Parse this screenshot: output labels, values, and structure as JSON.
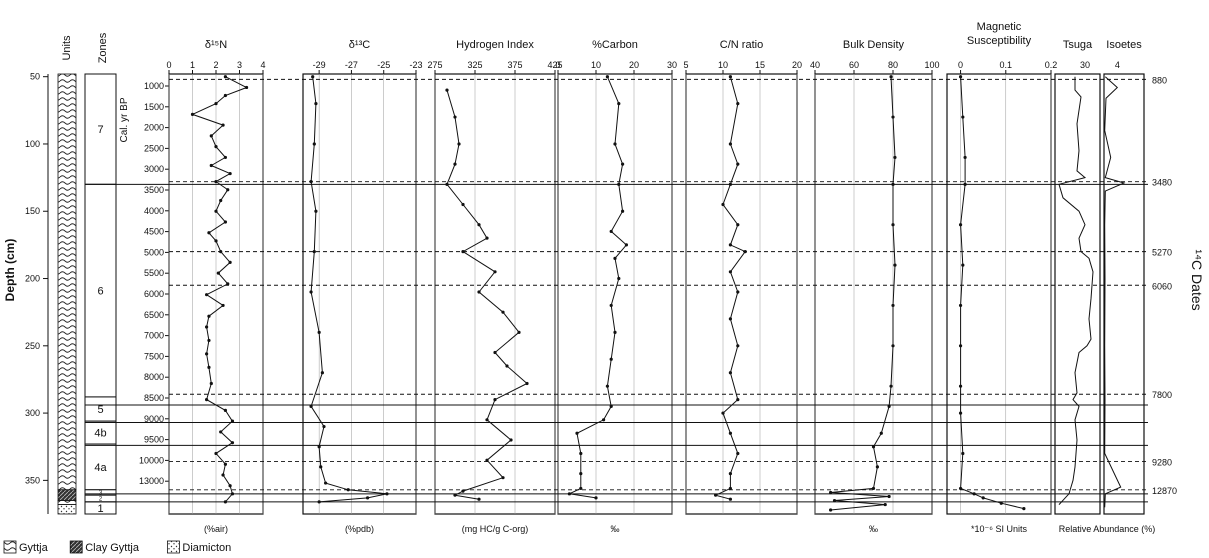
{
  "chart_data": {
    "type": "line",
    "depth_axis": {
      "label": "Depth (cm)",
      "ticks": [
        50,
        100,
        150,
        200,
        250,
        300,
        350
      ],
      "range": [
        48,
        375
      ]
    },
    "units": {
      "title": "Units",
      "intervals": [
        {
          "lith": "gyttja",
          "top": 48,
          "bottom": 357
        },
        {
          "lith": "clay",
          "top": 357,
          "bottom": 365
        },
        {
          "lith": "gyttja",
          "top": 365,
          "bottom": 368
        },
        {
          "lith": "diamicton",
          "top": 368,
          "bottom": 375
        }
      ]
    },
    "zones": {
      "title": "Zones",
      "items": [
        {
          "label": "7",
          "top": 48,
          "bottom": 130
        },
        {
          "label": "6",
          "top": 130,
          "bottom": 288
        },
        {
          "label": "5",
          "top": 288,
          "bottom": 306
        },
        {
          "label": "4b",
          "top": 306,
          "bottom": 323
        },
        {
          "label": "4a",
          "top": 323,
          "bottom": 357
        },
        {
          "label": "3",
          "top": 357,
          "bottom": 361
        },
        {
          "label": "2",
          "top": 361,
          "bottom": 366
        },
        {
          "label": "1",
          "top": 366,
          "bottom": 375
        }
      ]
    },
    "age_axis": {
      "label": "Cal. yr BP",
      "ticks": [
        "1000",
        "1500",
        "2000",
        "2500",
        "3000",
        "3500",
        "4000",
        "4500",
        "5000",
        "5500",
        "6000",
        "6500",
        "7000",
        "7500",
        "8000",
        "8500",
        "9000",
        "9500",
        "10000",
        "13000"
      ]
    },
    "solid_lines": [
      130,
      294,
      307,
      324,
      360,
      366
    ],
    "dashed_lines": [
      52,
      128,
      180,
      205,
      286,
      336,
      357
    ],
    "dates_title": "¹⁴C Dates",
    "dates": [
      {
        "label": "880",
        "depth": 52
      },
      {
        "label": "3480",
        "depth": 128
      },
      {
        "label": "5270",
        "depth": 180
      },
      {
        "label": "6060",
        "depth": 205
      },
      {
        "label": "7800",
        "depth": 286
      },
      {
        "label": "9280",
        "depth": 336
      },
      {
        "label": "12870",
        "depth": 357
      }
    ],
    "panels": [
      {
        "title": "δ¹⁵N",
        "xlabel": "(%air)",
        "ticks": [
          "0",
          "1",
          "2",
          "3",
          "4"
        ],
        "xlim": [
          0,
          4
        ],
        "points": [
          [
            2.4,
            50
          ],
          [
            3.3,
            58
          ],
          [
            2.4,
            64
          ],
          [
            2.0,
            70
          ],
          [
            1.0,
            78
          ],
          [
            2.3,
            86
          ],
          [
            1.8,
            94
          ],
          [
            2.0,
            102
          ],
          [
            2.4,
            110
          ],
          [
            1.8,
            116
          ],
          [
            2.6,
            122
          ],
          [
            2.0,
            128
          ],
          [
            2.5,
            134
          ],
          [
            2.2,
            142
          ],
          [
            2.0,
            150
          ],
          [
            2.4,
            158
          ],
          [
            1.7,
            166
          ],
          [
            2.0,
            172
          ],
          [
            2.2,
            180
          ],
          [
            2.6,
            188
          ],
          [
            2.1,
            196
          ],
          [
            2.5,
            204
          ],
          [
            1.6,
            212
          ],
          [
            2.3,
            220
          ],
          [
            1.7,
            228
          ],
          [
            1.6,
            236
          ],
          [
            1.7,
            246
          ],
          [
            1.6,
            256
          ],
          [
            1.7,
            266
          ],
          [
            1.8,
            278
          ],
          [
            1.6,
            290
          ],
          [
            2.4,
            298
          ],
          [
            2.7,
            306
          ],
          [
            2.2,
            314
          ],
          [
            2.7,
            322
          ],
          [
            2.0,
            330
          ],
          [
            2.4,
            338
          ],
          [
            2.3,
            346
          ],
          [
            2.6,
            354
          ],
          [
            2.7,
            360
          ],
          [
            2.4,
            366
          ]
        ]
      },
      {
        "title": "δ¹³C",
        "xlabel": "(%pdb)",
        "ticks": [
          "-29",
          "-27",
          "-25",
          "-23"
        ],
        "xlim": [
          -30,
          -23
        ],
        "points": [
          [
            -29.4,
            50
          ],
          [
            -29.2,
            70
          ],
          [
            -29.3,
            100
          ],
          [
            -29.5,
            128
          ],
          [
            -29.2,
            150
          ],
          [
            -29.3,
            180
          ],
          [
            -29.5,
            210
          ],
          [
            -29.0,
            240
          ],
          [
            -28.8,
            270
          ],
          [
            -29.5,
            295
          ],
          [
            -28.7,
            310
          ],
          [
            -29.0,
            325
          ],
          [
            -28.9,
            340
          ],
          [
            -28.6,
            352
          ],
          [
            -27.2,
            357
          ],
          [
            -24.8,
            360
          ],
          [
            -26.0,
            363
          ],
          [
            -29.0,
            366
          ]
        ]
      },
      {
        "title": "Hydrogen Index",
        "xlabel": "(mg HC/g C-org)",
        "ticks": [
          "275",
          "325",
          "375",
          "425"
        ],
        "xlim": [
          275,
          425
        ],
        "points": [
          [
            290,
            60
          ],
          [
            300,
            80
          ],
          [
            305,
            100
          ],
          [
            300,
            115
          ],
          [
            290,
            130
          ],
          [
            310,
            145
          ],
          [
            330,
            160
          ],
          [
            340,
            170
          ],
          [
            310,
            180
          ],
          [
            350,
            195
          ],
          [
            330,
            210
          ],
          [
            360,
            225
          ],
          [
            380,
            240
          ],
          [
            350,
            255
          ],
          [
            365,
            265
          ],
          [
            390,
            278
          ],
          [
            350,
            290
          ],
          [
            340,
            305
          ],
          [
            370,
            320
          ],
          [
            340,
            335
          ],
          [
            360,
            348
          ],
          [
            310,
            358
          ],
          [
            300,
            361
          ],
          [
            330,
            364
          ]
        ]
      },
      {
        "title": "%Carbon",
        "xlabel": "‰",
        "ticks": [
          "0",
          "10",
          "20",
          "30"
        ],
        "xlim": [
          0,
          30
        ],
        "points": [
          [
            13,
            50
          ],
          [
            16,
            70
          ],
          [
            15,
            100
          ],
          [
            17,
            115
          ],
          [
            16,
            130
          ],
          [
            17,
            150
          ],
          [
            14,
            165
          ],
          [
            18,
            175
          ],
          [
            15,
            185
          ],
          [
            16,
            200
          ],
          [
            14,
            220
          ],
          [
            15,
            240
          ],
          [
            14,
            260
          ],
          [
            13,
            280
          ],
          [
            14,
            295
          ],
          [
            12,
            305
          ],
          [
            5,
            315
          ],
          [
            6,
            330
          ],
          [
            6,
            345
          ],
          [
            6,
            356
          ],
          [
            3,
            360
          ],
          [
            10,
            363
          ]
        ]
      },
      {
        "title": "C/N ratio",
        "xlabel": "",
        "ticks": [
          "5",
          "10",
          "15",
          "20"
        ],
        "xlim": [
          5,
          20
        ],
        "points": [
          [
            11,
            50
          ],
          [
            12,
            70
          ],
          [
            11,
            100
          ],
          [
            12,
            115
          ],
          [
            11,
            130
          ],
          [
            10,
            145
          ],
          [
            12,
            160
          ],
          [
            11,
            175
          ],
          [
            13,
            180
          ],
          [
            11,
            195
          ],
          [
            12,
            210
          ],
          [
            11,
            230
          ],
          [
            12,
            250
          ],
          [
            11,
            270
          ],
          [
            12,
            290
          ],
          [
            10,
            300
          ],
          [
            11,
            315
          ],
          [
            12,
            330
          ],
          [
            11,
            345
          ],
          [
            11,
            356
          ],
          [
            9,
            361
          ],
          [
            11,
            364
          ]
        ]
      },
      {
        "title": "Bulk Density",
        "xlabel": "‰",
        "ticks": [
          "40",
          "60",
          "80",
          "100"
        ],
        "xlim": [
          40,
          100
        ],
        "points": [
          [
            79,
            50
          ],
          [
            80,
            80
          ],
          [
            81,
            110
          ],
          [
            80,
            130
          ],
          [
            80,
            160
          ],
          [
            81,
            190
          ],
          [
            80,
            220
          ],
          [
            80,
            250
          ],
          [
            79,
            280
          ],
          [
            78,
            295
          ],
          [
            74,
            315
          ],
          [
            70,
            325
          ],
          [
            72,
            340
          ],
          [
            70,
            356
          ],
          [
            48,
            359
          ],
          [
            78,
            362
          ],
          [
            50,
            365
          ],
          [
            76,
            368
          ],
          [
            48,
            372
          ]
        ]
      },
      {
        "title": "Magnetic\nSusceptibility",
        "xlabel": "*10⁻⁶ SI Units",
        "ticks": [
          "0",
          "0.1",
          "0.2"
        ],
        "xlim": [
          -0.03,
          0.2
        ],
        "points": [
          [
            0.0,
            50
          ],
          [
            0.005,
            80
          ],
          [
            0.01,
            110
          ],
          [
            0.01,
            130
          ],
          [
            0.0,
            160
          ],
          [
            0.005,
            190
          ],
          [
            0.0,
            220
          ],
          [
            0.0,
            250
          ],
          [
            0.0,
            280
          ],
          [
            0.0,
            300
          ],
          [
            0.005,
            330
          ],
          [
            0.0,
            356
          ],
          [
            0.03,
            360
          ],
          [
            0.05,
            363
          ],
          [
            0.09,
            367
          ],
          [
            0.14,
            371
          ]
        ]
      },
      {
        "title": "Tsuga",
        "xlabel": "",
        "ticks": [
          "30"
        ],
        "xlim": [
          0,
          45
        ],
        "points": [
          [
            20,
            50
          ],
          [
            20,
            60
          ],
          [
            26,
            65
          ],
          [
            22,
            85
          ],
          [
            24,
            105
          ],
          [
            22,
            120
          ],
          [
            30,
            125
          ],
          [
            4,
            130
          ],
          [
            8,
            140
          ],
          [
            24,
            150
          ],
          [
            30,
            160
          ],
          [
            24,
            170
          ],
          [
            26,
            180
          ],
          [
            34,
            185
          ],
          [
            38,
            195
          ],
          [
            36,
            215
          ],
          [
            34,
            230
          ],
          [
            36,
            245
          ],
          [
            32,
            250
          ],
          [
            24,
            255
          ],
          [
            20,
            270
          ],
          [
            22,
            285
          ],
          [
            18,
            290
          ],
          [
            24,
            295
          ],
          [
            20,
            305
          ],
          [
            22,
            320
          ],
          [
            20,
            340
          ],
          [
            18,
            350
          ],
          [
            14,
            360
          ],
          [
            4,
            368
          ]
        ]
      },
      {
        "title": "Isoetes",
        "xlabel": "",
        "ticks": [
          "4"
        ],
        "xlim": [
          0,
          12
        ],
        "points": [
          [
            0.4,
            50
          ],
          [
            4,
            58
          ],
          [
            0.6,
            66
          ],
          [
            0.2,
            90
          ],
          [
            2,
            110
          ],
          [
            0.4,
            125
          ],
          [
            6,
            129
          ],
          [
            0.4,
            135
          ],
          [
            0.2,
            160
          ],
          [
            0.3,
            200
          ],
          [
            0.2,
            250
          ],
          [
            0.3,
            290
          ],
          [
            0.2,
            330
          ],
          [
            5,
            355
          ],
          [
            0.4,
            360
          ],
          [
            0.2,
            370
          ]
        ]
      }
    ],
    "pollen_xlabel": "Relative Abundance (%)",
    "legend": [
      {
        "label": "Gyttja",
        "pattern": "gyttja"
      },
      {
        "label": "Clay Gyttja",
        "pattern": "clay"
      },
      {
        "label": "Diamicton",
        "pattern": "diamicton"
      }
    ]
  }
}
